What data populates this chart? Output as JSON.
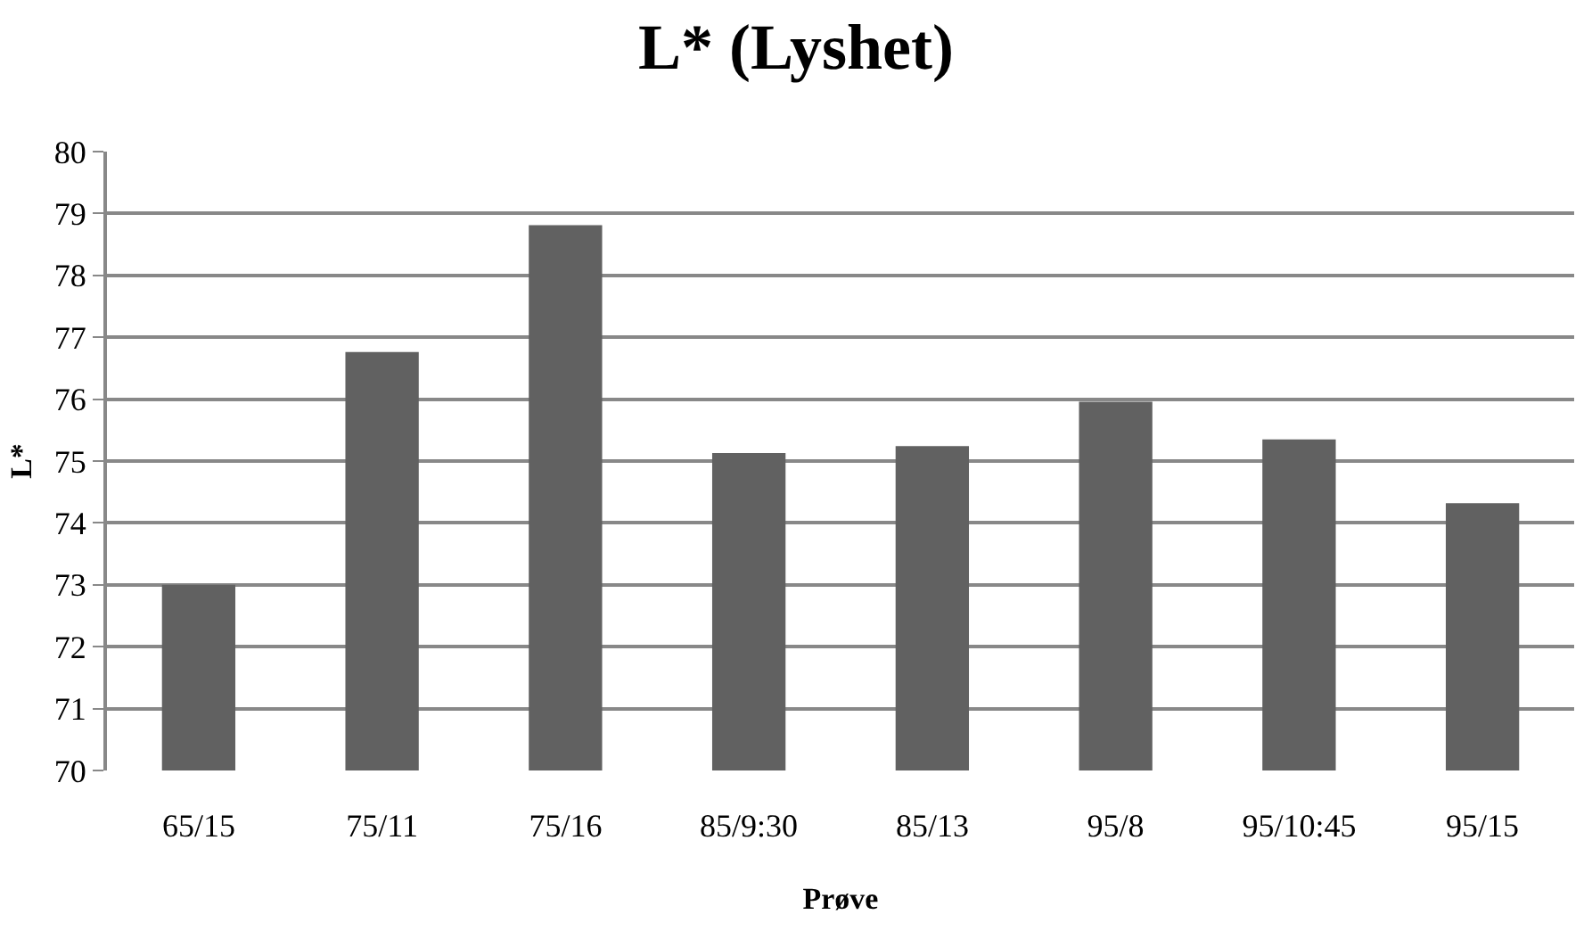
{
  "chart_data": {
    "type": "bar",
    "title": "L* (Lyshet)",
    "xlabel": "Prøve",
    "ylabel": "L*",
    "categories": [
      "65/15",
      "75/11",
      "75/16",
      "85/9:30",
      "85/13",
      "95/8",
      "95/10:45",
      "95/15"
    ],
    "values": [
      73.0,
      76.76,
      78.81,
      75.13,
      75.24,
      75.96,
      75.35,
      74.32
    ],
    "color": "#616161",
    "ylim": [
      70,
      80
    ],
    "yticks": [
      70,
      71,
      72,
      73,
      74,
      75,
      76,
      77,
      78,
      79,
      80
    ],
    "grid": "y"
  }
}
